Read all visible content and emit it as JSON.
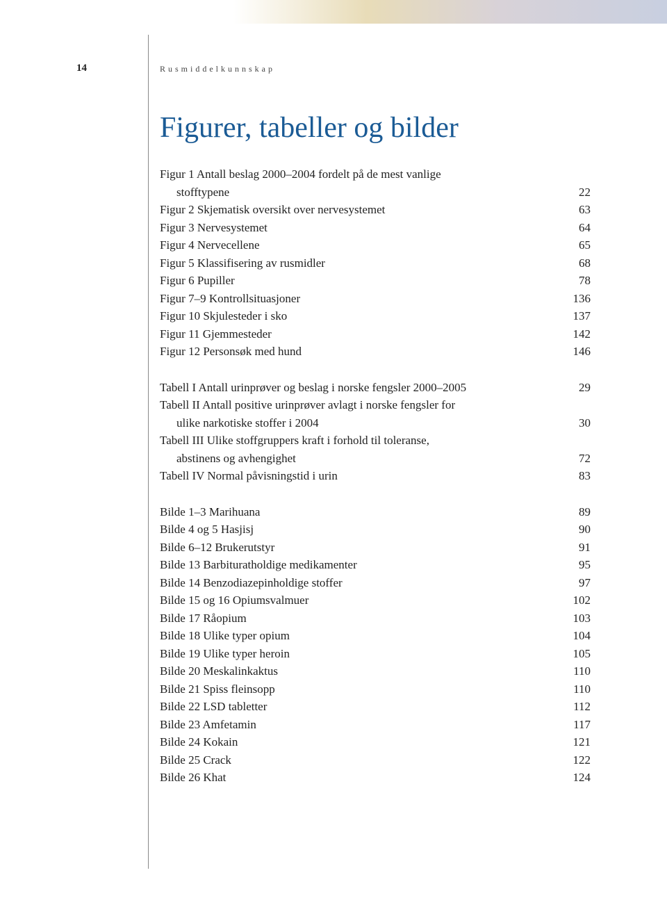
{
  "page_number": "14",
  "running_header": "Rusmiddelkunnskap",
  "title": "Figurer, tabeller og bilder",
  "figurer": [
    {
      "label": "Figur 1 Antall beslag 2000–2004 fordelt på de mest vanlige",
      "page": ""
    },
    {
      "label": "stofftypene",
      "page": "22",
      "indent": true
    },
    {
      "label": "Figur 2 Skjematisk oversikt over nervesystemet",
      "page": "63"
    },
    {
      "label": "Figur 3 Nervesystemet",
      "page": "64"
    },
    {
      "label": "Figur 4 Nervecellene",
      "page": "65"
    },
    {
      "label": "Figur 5 Klassifisering av rusmidler",
      "page": "68"
    },
    {
      "label": "Figur 6 Pupiller",
      "page": "78"
    },
    {
      "label": "Figur 7–9 Kontrollsituasjoner",
      "page": "136"
    },
    {
      "label": "Figur 10 Skjulesteder i sko",
      "page": "137"
    },
    {
      "label": "Figur 11 Gjemmesteder",
      "page": "142"
    },
    {
      "label": "Figur 12 Personsøk med hund",
      "page": "146"
    }
  ],
  "tabeller": [
    {
      "label": "Tabell I Antall urinprøver og beslag i norske fengsler 2000–2005",
      "page": "29"
    },
    {
      "label": "Tabell II Antall positive urinprøver avlagt i norske fengsler for",
      "page": ""
    },
    {
      "label": "ulike narkotiske stoffer i 2004",
      "page": "30",
      "indent": true
    },
    {
      "label": "Tabell III Ulike stoffgruppers kraft i forhold til toleranse,",
      "page": ""
    },
    {
      "label": "abstinens og avhengighet",
      "page": "72",
      "indent": true
    },
    {
      "label": "Tabell IV Normal påvisningstid i urin",
      "page": "83"
    }
  ],
  "bilder": [
    {
      "label": "Bilde 1–3 Marihuana",
      "page": "89"
    },
    {
      "label": "Bilde 4 og 5 Hasjisj",
      "page": "90"
    },
    {
      "label": "Bilde 6–12 Brukerutstyr",
      "page": "91"
    },
    {
      "label": "Bilde 13 Barbituratholdige medikamenter",
      "page": "95"
    },
    {
      "label": "Bilde 14 Benzodiazepinholdige stoffer",
      "page": "97"
    },
    {
      "label": "Bilde 15 og 16 Opiumsvalmuer",
      "page": "102"
    },
    {
      "label": "Bilde 17 Råopium",
      "page": "103"
    },
    {
      "label": "Bilde 18 Ulike typer opium",
      "page": "104"
    },
    {
      "label": "Bilde 19 Ulike typer heroin",
      "page": "105"
    },
    {
      "label": "Bilde 20 Meskalinkaktus",
      "page": "110"
    },
    {
      "label": "Bilde 21 Spiss fleinsopp",
      "page": "110"
    },
    {
      "label": "Bilde 22 LSD tabletter",
      "page": "112"
    },
    {
      "label": "Bilde 23 Amfetamin",
      "page": "117"
    },
    {
      "label": "Bilde 24 Kokain",
      "page": "121"
    },
    {
      "label": "Bilde 25 Crack",
      "page": "122"
    },
    {
      "label": "Bilde 26 Khat",
      "page": "124"
    }
  ]
}
